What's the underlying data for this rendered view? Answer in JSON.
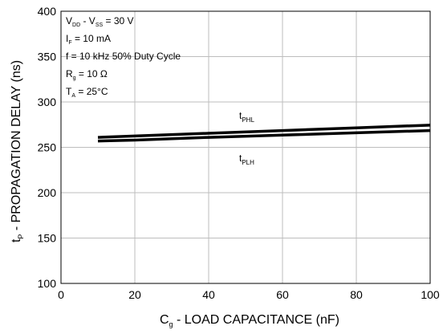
{
  "chart_data": {
    "type": "line",
    "title": "",
    "xlabel": {
      "main": "C",
      "sub": "g",
      "rest": " - LOAD CAPACITANCE (nF)"
    },
    "ylabel": {
      "main": "t",
      "sub": "P",
      "rest": " - PROPAGATION DELAY (ns)"
    },
    "xlim": [
      0,
      100
    ],
    "ylim": [
      100,
      400
    ],
    "x_ticks": [
      "0",
      "20",
      "40",
      "60",
      "80",
      "100"
    ],
    "y_ticks": [
      "100",
      "150",
      "200",
      "250",
      "300",
      "350",
      "400"
    ],
    "grid": true,
    "series": [
      {
        "name": {
          "main": "t",
          "sub": "PHL"
        },
        "x": [
          10,
          20,
          40,
          60,
          80,
          100
        ],
        "y": [
          261,
          262.5,
          265.5,
          268.5,
          271.5,
          274.5
        ]
      },
      {
        "name": {
          "main": "t",
          "sub": "PLH"
        },
        "x": [
          10,
          20,
          40,
          60,
          80,
          100
        ],
        "y": [
          257,
          258,
          261,
          263.5,
          266,
          268.5
        ]
      }
    ],
    "annotations": [
      [
        {
          "t": "V",
          "s": false
        },
        {
          "t": "DD",
          "s": true
        },
        {
          "t": " - V",
          "s": false
        },
        {
          "t": "SS",
          "s": true
        },
        {
          "t": " = 30 V",
          "s": false
        }
      ],
      [
        {
          "t": "I",
          "s": false
        },
        {
          "t": "F",
          "s": true
        },
        {
          "t": " = 10 mA",
          "s": false
        }
      ],
      [
        {
          "t": "f = 10 kHz 50% Duty Cycle",
          "s": false
        }
      ],
      [
        {
          "t": "R",
          "s": false
        },
        {
          "t": "g",
          "s": true
        },
        {
          "t": " = 10 Ω",
          "s": false
        }
      ],
      [
        {
          "t": "T",
          "s": false
        },
        {
          "t": "A",
          "s": true
        },
        {
          "t": " = 25°C",
          "s": false
        }
      ]
    ]
  }
}
